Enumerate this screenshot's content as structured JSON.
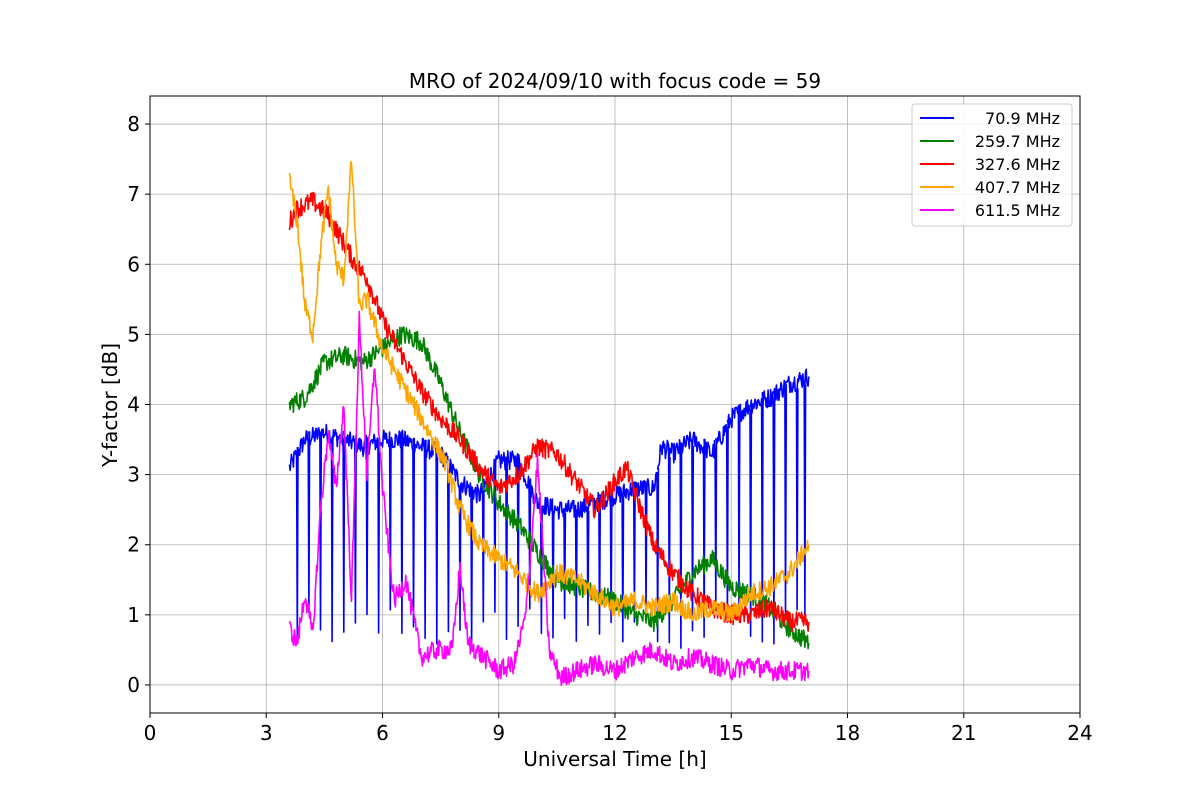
{
  "chart_data": {
    "type": "line",
    "title": "MRO of 2024/09/10 with focus code = 59",
    "xlabel": "Universal Time [h]",
    "ylabel": "Y-factor [dB]",
    "xlim": [
      0,
      24
    ],
    "ylim": [
      -0.4,
      8.4
    ],
    "xticks": [
      0,
      3,
      6,
      9,
      12,
      15,
      18,
      21,
      24
    ],
    "yticks": [
      0,
      1,
      2,
      3,
      4,
      5,
      6,
      7,
      8
    ],
    "grid": true,
    "legend_position": "top-right",
    "series": [
      {
        "name": "70.9 MHz",
        "color": "#0000ff",
        "x": [
          3.6,
          4.0,
          4.5,
          5.0,
          5.5,
          6.0,
          6.5,
          7.0,
          7.5,
          8.0,
          8.5,
          9.0,
          9.5,
          10.0,
          10.5,
          11.0,
          11.5,
          12.0,
          12.5,
          13.0,
          13.2,
          13.5,
          14.0,
          14.5,
          15.0,
          15.5,
          16.0,
          16.5,
          17.0
        ],
        "y": [
          3.1,
          3.5,
          3.6,
          3.5,
          3.4,
          3.5,
          3.5,
          3.4,
          3.3,
          2.9,
          2.7,
          3.2,
          3.2,
          2.6,
          2.5,
          2.5,
          2.6,
          2.7,
          2.8,
          2.8,
          3.4,
          3.3,
          3.5,
          3.3,
          3.8,
          4.0,
          4.1,
          4.3,
          4.4
        ],
        "dropouts_to": 0.5,
        "dropout_x": [
          3.8,
          4.1,
          4.4,
          4.7,
          5.0,
          5.3,
          5.6,
          5.9,
          6.2,
          6.5,
          6.8,
          7.1,
          7.4,
          7.7,
          8.0,
          8.3,
          8.6,
          8.9,
          9.2,
          9.5,
          9.8,
          10.1,
          10.4,
          10.7,
          11.0,
          11.3,
          11.6,
          11.9,
          12.2,
          12.5,
          12.8,
          13.1,
          13.4,
          13.7,
          14.0,
          14.3,
          14.6,
          14.9,
          15.2,
          15.5,
          15.8,
          16.1,
          16.4,
          16.7,
          16.9
        ]
      },
      {
        "name": "259.7 MHz",
        "color": "#008000",
        "x": [
          3.6,
          4.0,
          4.5,
          5.0,
          5.5,
          6.0,
          6.5,
          7.0,
          7.5,
          8.0,
          8.5,
          9.0,
          9.5,
          10.0,
          10.5,
          11.0,
          11.5,
          12.0,
          12.5,
          13.0,
          13.5,
          14.0,
          14.5,
          15.0,
          15.5,
          16.0,
          16.5,
          17.0
        ],
        "y": [
          4.0,
          4.1,
          4.6,
          4.7,
          4.6,
          4.8,
          5.0,
          4.9,
          4.3,
          3.6,
          3.0,
          2.6,
          2.3,
          1.9,
          1.5,
          1.4,
          1.3,
          1.2,
          1.0,
          0.9,
          1.2,
          1.6,
          1.8,
          1.4,
          1.3,
          1.1,
          0.8,
          0.6
        ]
      },
      {
        "name": "327.6 MHz",
        "color": "#ff0000",
        "x": [
          3.6,
          3.8,
          4.2,
          4.6,
          5.0,
          5.3,
          5.6,
          6.0,
          6.5,
          7.0,
          7.5,
          8.0,
          8.5,
          9.0,
          9.5,
          10.0,
          10.5,
          11.0,
          11.5,
          12.0,
          12.3,
          12.6,
          13.0,
          13.5,
          14.0,
          14.5,
          15.0,
          15.5,
          16.0,
          16.5,
          17.0
        ],
        "y": [
          6.6,
          6.8,
          6.9,
          6.7,
          6.3,
          6.0,
          5.8,
          5.2,
          4.7,
          4.2,
          3.8,
          3.5,
          3.1,
          2.8,
          3.0,
          3.4,
          3.3,
          2.9,
          2.5,
          2.9,
          3.1,
          2.6,
          2.0,
          1.6,
          1.3,
          1.1,
          1.0,
          1.0,
          1.1,
          0.9,
          0.9
        ]
      },
      {
        "name": "407.7 MHz",
        "color": "#ffa500",
        "x": [
          3.6,
          3.8,
          4.0,
          4.2,
          4.4,
          4.6,
          4.8,
          5.0,
          5.2,
          5.4,
          5.6,
          6.0,
          6.4,
          6.8,
          7.2,
          7.6,
          8.0,
          8.5,
          9.0,
          9.5,
          10.0,
          10.5,
          11.0,
          11.5,
          12.0,
          12.5,
          13.0,
          13.5,
          14.0,
          14.5,
          15.0,
          15.5,
          16.0,
          16.5,
          17.0
        ],
        "y": [
          7.2,
          6.6,
          5.4,
          5.0,
          6.2,
          7.1,
          6.0,
          5.8,
          7.5,
          5.4,
          5.5,
          4.8,
          4.4,
          4.0,
          3.6,
          3.2,
          2.5,
          2.0,
          1.8,
          1.6,
          1.3,
          1.6,
          1.5,
          1.3,
          1.1,
          1.2,
          1.1,
          1.2,
          1.0,
          1.1,
          1.0,
          1.3,
          1.4,
          1.6,
          2.0
        ]
      },
      {
        "name": "611.5 MHz",
        "color": "#ff00ff",
        "x": [
          3.6,
          3.8,
          4.0,
          4.2,
          4.4,
          4.6,
          4.8,
          5.0,
          5.2,
          5.4,
          5.6,
          5.8,
          6.0,
          6.3,
          6.6,
          7.0,
          7.4,
          7.8,
          8.0,
          8.2,
          8.6,
          9.0,
          9.4,
          9.7,
          10.0,
          10.3,
          10.6,
          11.0,
          11.5,
          12.0,
          12.5,
          13.0,
          13.5,
          14.0,
          14.5,
          15.0,
          15.5,
          16.0,
          16.5,
          17.0
        ],
        "y": [
          0.8,
          0.6,
          1.3,
          0.7,
          2.5,
          3.6,
          2.8,
          4.0,
          1.2,
          5.2,
          3.0,
          4.6,
          2.8,
          1.2,
          1.5,
          0.4,
          0.5,
          0.5,
          1.7,
          0.6,
          0.4,
          0.2,
          0.3,
          1.0,
          3.2,
          0.5,
          0.1,
          0.2,
          0.3,
          0.2,
          0.4,
          0.5,
          0.3,
          0.4,
          0.3,
          0.2,
          0.3,
          0.2,
          0.2,
          0.2
        ]
      }
    ]
  }
}
